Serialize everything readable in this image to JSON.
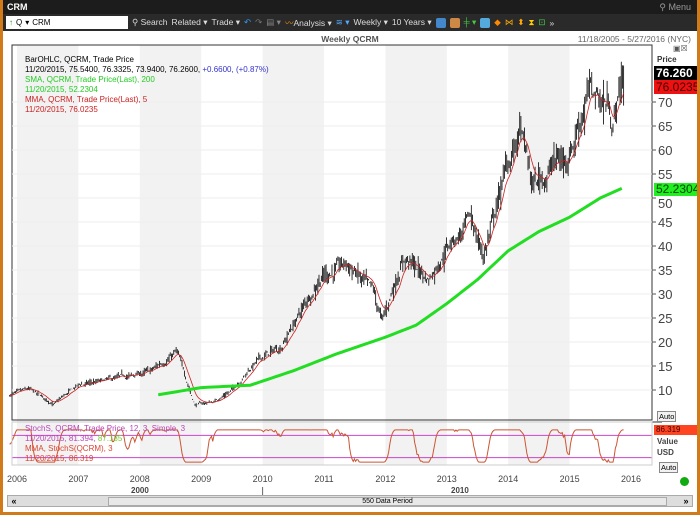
{
  "window": {
    "title": "CRM",
    "menu": "Menu"
  },
  "toolbar": {
    "symbol_prefix": "Q",
    "symbol": "CRM",
    "search": "Search",
    "related": "Related",
    "trade": "Trade",
    "analysis": "Analysis",
    "period": "Weekly",
    "range": "10 Years"
  },
  "chart": {
    "title": "Weekly QCRM",
    "date_range": "11/18/2005 - 5/27/2016 (NYC)",
    "legend": {
      "bar_title": "BarOHLC, QCRM, Trade Price",
      "bar_values": "11/20/2015, 75.5400, 76.3325, 73.9400, 76.2600,",
      "bar_change": "+0.6600, (+0.87%)",
      "sma_title": "SMA, QCRM, Trade Price(Last),  200",
      "sma_value": "11/20/2015, 52.2304",
      "mma_title": "MMA, QCRM, Trade Price(Last),  5",
      "mma_value": "11/20/2015, 76.0235"
    },
    "price_label": "Price",
    "tag_last": "76.260",
    "tag_mma": "76.0235",
    "tag_sma": "52.2304",
    "auto": "Auto",
    "stoch_legend": {
      "title": "StochS, QCRM, Trade Price,  12, 3, Simple, 3",
      "value_a": "11/20/2015, 81.394,",
      "value_b": "87.185",
      "mma_title": "MMA, StochS(QCRM),  3",
      "mma_value": "11/20/2015, 86.319"
    },
    "stoch_tag": "86.319",
    "value_label": "Value",
    "currency": "USD",
    "decades": [
      "2000",
      "2010"
    ],
    "period_label": "550 Data Period"
  },
  "colors": {
    "price": "#000000",
    "sma": "#22dd22",
    "mma": "#cc2222",
    "stoch": "#cc5533",
    "stoch_band": "#cc44cc",
    "tag_last": "#000000",
    "tag_mma": "#ee1111",
    "tag_sma": "#22ee22"
  },
  "chart_data": {
    "type": "line",
    "title": "Weekly QCRM",
    "x_ticks": [
      "2006",
      "2007",
      "2008",
      "2009",
      "2010",
      "2011",
      "2012",
      "2013",
      "2014",
      "2015",
      "2016"
    ],
    "y_ticks": [
      10,
      15,
      20,
      25,
      30,
      35,
      40,
      45,
      50,
      55,
      60,
      65,
      70
    ],
    "ylim": [
      5,
      82
    ],
    "price_keypoints": [
      [
        2005.88,
        9
      ],
      [
        2006.2,
        10
      ],
      [
        2006.6,
        7
      ],
      [
        2007.0,
        11
      ],
      [
        2007.5,
        12
      ],
      [
        2007.9,
        13
      ],
      [
        2008.2,
        14
      ],
      [
        2008.6,
        18
      ],
      [
        2008.9,
        7
      ],
      [
        2009.2,
        7.5
      ],
      [
        2009.5,
        10
      ],
      [
        2009.9,
        16
      ],
      [
        2010.3,
        19
      ],
      [
        2010.7,
        28
      ],
      [
        2010.95,
        34
      ],
      [
        2011.4,
        36
      ],
      [
        2011.8,
        30
      ],
      [
        2011.95,
        24
      ],
      [
        2012.3,
        38
      ],
      [
        2012.7,
        33
      ],
      [
        2013.0,
        40
      ],
      [
        2013.4,
        45
      ],
      [
        2013.6,
        38
      ],
      [
        2013.95,
        55
      ],
      [
        2014.2,
        64
      ],
      [
        2014.4,
        52
      ],
      [
        2014.8,
        58
      ],
      [
        2014.95,
        58
      ],
      [
        2015.3,
        72
      ],
      [
        2015.6,
        70
      ],
      [
        2015.7,
        66
      ],
      [
        2015.89,
        76.26
      ]
    ],
    "sma_keypoints": [
      [
        2008.3,
        9
      ],
      [
        2009.0,
        10.5
      ],
      [
        2009.8,
        11
      ],
      [
        2010.5,
        14
      ],
      [
        2011.2,
        17.5
      ],
      [
        2012.0,
        21
      ],
      [
        2012.5,
        23.5
      ],
      [
        2013.0,
        28
      ],
      [
        2013.5,
        33
      ],
      [
        2014.0,
        39
      ],
      [
        2014.5,
        43
      ],
      [
        2015.0,
        46
      ],
      [
        2015.5,
        50
      ],
      [
        2015.89,
        52.23
      ]
    ],
    "stoch_bands": [
      80,
      20
    ]
  }
}
